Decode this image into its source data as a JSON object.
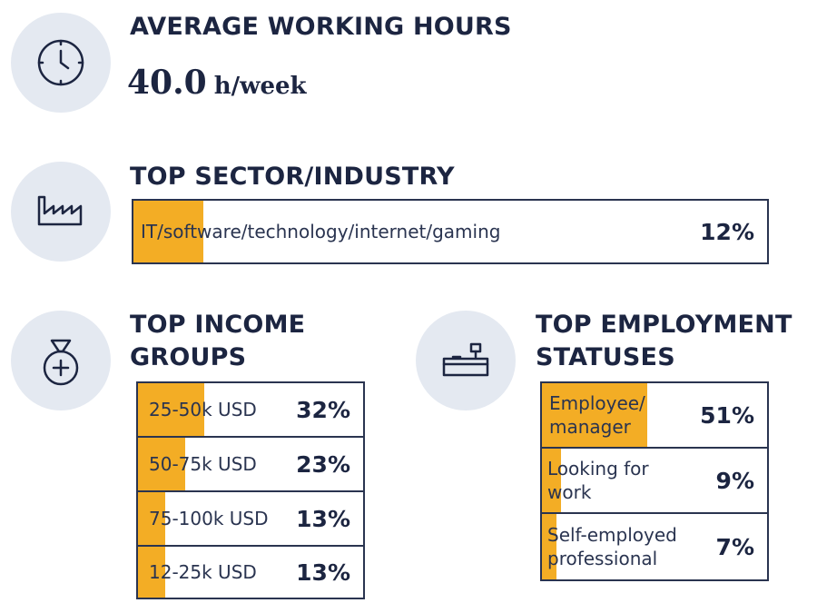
{
  "hours": {
    "heading": "AVERAGE WORKING HOURS",
    "value": "40.0",
    "unit": "h/week",
    "icon": "clock-icon"
  },
  "sector": {
    "heading": "TOP SECTOR/INDUSTRY",
    "icon": "factory-icon",
    "item": {
      "label": "IT/software/technology/internet/gaming",
      "percent": "12%",
      "share": 0.12
    }
  },
  "income": {
    "heading_line1": "TOP INCOME",
    "heading_line2": "GROUPS",
    "icon": "money-bag-icon",
    "items": [
      {
        "label": "25-50k USD",
        "percent": "32%",
        "share": 0.32
      },
      {
        "label": "50-75k USD",
        "percent": "23%",
        "share": 0.23
      },
      {
        "label": "75-100k USD",
        "percent": "13%",
        "share": 0.13
      },
      {
        "label": "12-25k USD",
        "percent": "13%",
        "share": 0.13
      }
    ]
  },
  "employment": {
    "heading_line1": "TOP EMPLOYMENT",
    "heading_line2": "STATUSES",
    "icon": "desk-icon",
    "items": [
      {
        "label_line1": "Employee/",
        "label_line2": "manager",
        "percent": "51%",
        "share": 0.51
      },
      {
        "label_line1": "Looking for",
        "label_line2": "work",
        "percent": "9%",
        "share": 0.09
      },
      {
        "label_line1": "Self-employed",
        "label_line2": "professional",
        "percent": "7%",
        "share": 0.07
      }
    ]
  },
  "colors": {
    "accent": "#f3ad25",
    "text": "#1c2541",
    "circle": "#e4e9f1"
  }
}
